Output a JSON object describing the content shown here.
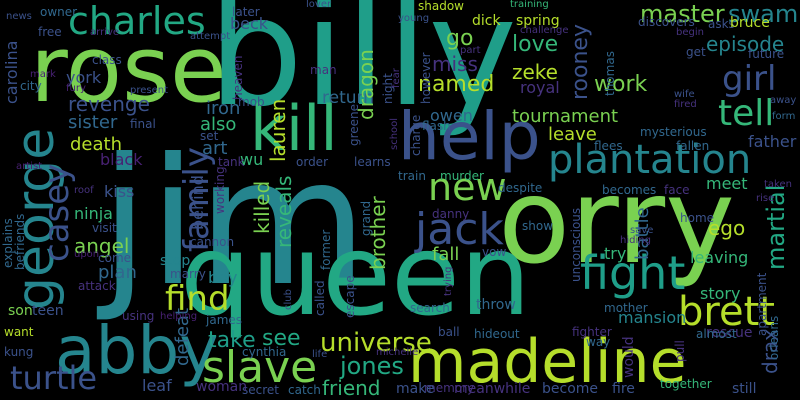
{
  "palette": {
    "background": "#000000",
    "green": "#7AD151",
    "lime": "#B5DE2B",
    "teal": "#1F9E89",
    "teal2": "#25858E",
    "blue": "#31688E",
    "indigo": "#3B528B",
    "purple": "#46327E",
    "violet": "#482173",
    "mint": "#35B779",
    "sea": "#22A884"
  },
  "words": {
    "billy": "billy",
    "jim": "jim",
    "orry": "orry",
    "rose": "rose",
    "queen": "queen",
    "madeline": "madeline",
    "george": "george",
    "abby": "abby",
    "charles": "charles",
    "kill": "kill",
    "help": "help",
    "plantation": "plantation",
    "fight": "fight",
    "brett": "brett",
    "slave": "slave",
    "jack": "jack",
    "new": "new",
    "find": "find",
    "family": "family",
    "casey": "casey",
    "girl": "girl",
    "tell": "tell",
    "turtle": "turtle",
    "master": "master",
    "swamp": "swamp",
    "episode": "episode",
    "dragon": "dragon",
    "return": "return",
    "miss": "miss",
    "love": "love",
    "zeke": "zeke",
    "go": "go",
    "rooney": "rooney",
    "named": "named",
    "work": "work",
    "royal": "royal",
    "dick": "dick",
    "spring": "spring",
    "beck": "beck",
    "revenge": "revenge",
    "sister": "sister",
    "death": "death",
    "black": "black",
    "ninja": "ninja",
    "angel": "angel",
    "plan": "plan",
    "killed": "killed",
    "reveals": "reveals",
    "brother": "brother",
    "universe": "universe",
    "jones": "jones",
    "friend": "friend",
    "take": "take",
    "see": "see",
    "tournament": "tournament",
    "leave": "leave",
    "owen": "owen",
    "meet": "meet",
    "martial": "martial",
    "drax": "drax",
    "ego": "ego",
    "try": "try",
    "fall": "fall",
    "battle": "battle",
    "leaving": "leaving",
    "story": "story",
    "mansion": "mansion",
    "iron": "iron",
    "also": "also",
    "art": "art",
    "wu": "wu",
    "lauren": "lauren",
    "york": "york",
    "carolina": "carolina",
    "behind": "behind",
    "boy": "boy",
    "stop": "stop",
    "defeat": "defeat",
    "kiss": "kiss",
    "son": "son",
    "teen": "teen",
    "cynthia": "cynthia",
    "leaf": "leaf",
    "woman": "woman",
    "secret": "secret",
    "catch": "catch",
    "make": "make",
    "memory": "memory",
    "meanwhile": "meanwhile",
    "become": "become",
    "fire": "fire",
    "together": "together",
    "still": "still",
    "father": "father",
    "rescue": "rescue",
    "almost": "almost",
    "would": "would",
    "way": "way",
    "fighter": "fighter",
    "mother": "mother",
    "ball": "ball",
    "hideout": "hideout",
    "throw": "throw",
    "search": "search",
    "called": "called",
    "escape": "escape",
    "former": "former",
    "grand": "grand",
    "danny": "danny",
    "show": "show",
    "unconscious": "unconscious",
    "despite": "despite",
    "murder": "murder",
    "train": "train",
    "order": "order",
    "learns": "learns",
    "charge": "charge",
    "flash": "flash",
    "greene": "greene",
    "school": "school",
    "shadow": "shadow",
    "however": "however",
    "part": "part",
    "training": "training",
    "challenge": "challenge",
    "young": "young",
    "lover": "lover",
    "night": "night",
    "fear": "fear",
    "later": "later",
    "attempt": "attempt",
    "owner": "owner",
    "free": "free",
    "class": "class",
    "arrive": "arrive",
    "heaven": "heaven",
    "mob": "mob",
    "man": "man",
    "city": "city",
    "fury": "fury",
    "visit": "visit",
    "attack": "attack",
    "come": "come",
    "marry": "marry",
    "cannon": "cannon",
    "working": "working",
    "final": "final",
    "set": "set",
    "tank": "tank",
    "using": "using",
    "helping": "helping",
    "james": "james",
    "want": "want",
    "kung": "kung",
    "explains": "explains",
    "befriends": "befriends",
    "artist": "artist",
    "roof": "roof",
    "upon": "upon",
    "discovers": "discovers",
    "asks": "asks",
    "bruce": "bruce",
    "begin": "begin",
    "get": "get",
    "future": "future",
    "thomas": "thomas",
    "wife": "wife",
    "fired": "fired",
    "mysterious": "mysterious",
    "flees": "flees",
    "fallen": "fallen",
    "becomes": "becomes",
    "face": "face",
    "taken": "taken",
    "rise": "rise",
    "home": "home",
    "apartment": "apartment",
    "orleans": "orleans",
    "pull": "pull",
    "save": "save",
    "hiding": "hiding",
    "vow": "vow",
    "club": "club",
    "trying": "trying",
    "life": "life",
    "michelle": "michelle",
    "present": "present",
    "mark": "mark",
    "away": "away",
    "form": "form",
    "news": "news"
  }
}
